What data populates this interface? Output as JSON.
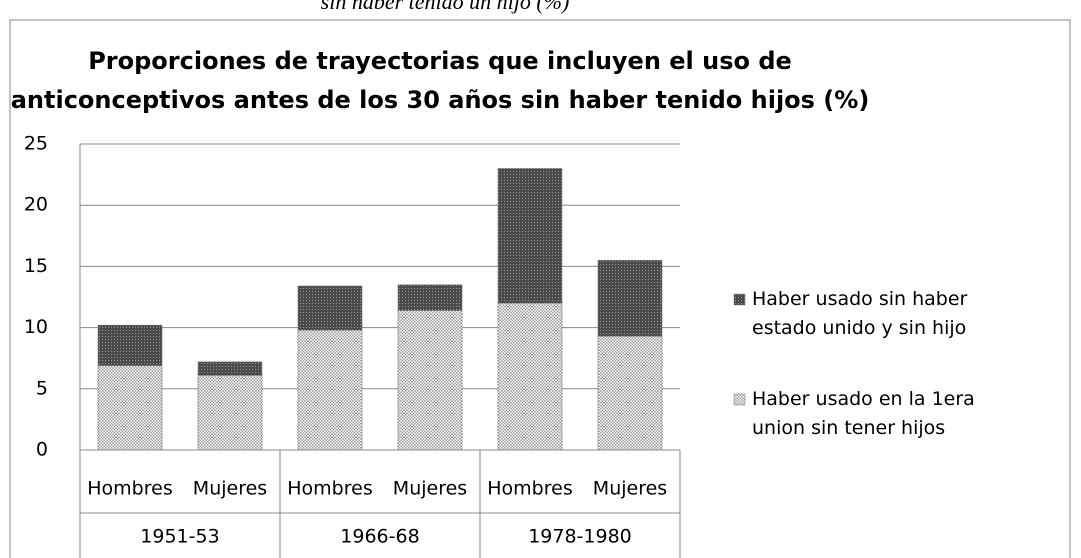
{
  "caption": "sin haber tenido un hijo (%)",
  "chart_data": {
    "type": "stacked-bar",
    "title": [
      "Proporciones de  trayectorias que incluyen el uso de",
      "anticonceptivos antes de los 30 años sin haber tenido hijos (%)"
    ],
    "categories": [
      "Hombres",
      "Mujeres",
      "Hombres",
      "Mujeres",
      "Hombres",
      "Mujeres"
    ],
    "groups": [
      "1951-53",
      "1966-68",
      "1978-1980"
    ],
    "series": [
      {
        "name": "Haber usado en la 1era union sin tener hijos",
        "color": "#9a9a9a",
        "values": [
          6.9,
          6.1,
          9.8,
          11.4,
          12.0,
          9.3
        ]
      },
      {
        "name": "Haber usado sin haber estado unido y sin hijo",
        "color": "#4a4a4a",
        "values": [
          3.3,
          1.1,
          3.6,
          2.1,
          11.0,
          6.2
        ]
      }
    ],
    "ylim": [
      0,
      25
    ],
    "yticks": [
      0,
      5,
      10,
      15,
      20,
      25
    ],
    "grid": true,
    "legend": "right"
  }
}
